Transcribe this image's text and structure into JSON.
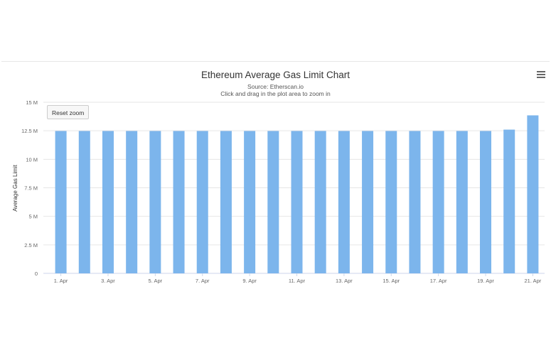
{
  "chart_data": {
    "type": "bar",
    "title": "Ethereum Average Gas Limit Chart",
    "subtitle": [
      "Source: Etherscan.io",
      "Click and drag in the plot area to zoom in"
    ],
    "ylabel": "Average Gas Limit",
    "xlabel": "",
    "ylim": [
      0,
      15000000
    ],
    "yticks": [
      {
        "value": 0,
        "label": "0"
      },
      {
        "value": 2500000,
        "label": "2.5 M"
      },
      {
        "value": 5000000,
        "label": "5 M"
      },
      {
        "value": 7500000,
        "label": "7.5 M"
      },
      {
        "value": 10000000,
        "label": "10 M"
      },
      {
        "value": 12500000,
        "label": "12.5 M"
      },
      {
        "value": 15000000,
        "label": "15 M"
      }
    ],
    "categories": [
      "1. Apr",
      "2. Apr",
      "3. Apr",
      "4. Apr",
      "5. Apr",
      "6. Apr",
      "7. Apr",
      "8. Apr",
      "9. Apr",
      "10. Apr",
      "11. Apr",
      "12. Apr",
      "13. Apr",
      "14. Apr",
      "15. Apr",
      "16. Apr",
      "17. Apr",
      "18. Apr",
      "19. Apr",
      "20. Apr",
      "21. Apr"
    ],
    "xtick_labels": [
      "1. Apr",
      "3. Apr",
      "5. Apr",
      "7. Apr",
      "9. Apr",
      "11. Apr",
      "13. Apr",
      "15. Apr",
      "17. Apr",
      "19. Apr",
      "21. Apr"
    ],
    "values": [
      12480000,
      12480000,
      12480000,
      12480000,
      12480000,
      12480000,
      12480000,
      12480000,
      12480000,
      12480000,
      12480000,
      12480000,
      12480000,
      12480000,
      12480000,
      12480000,
      12480000,
      12480000,
      12480000,
      12600000,
      13850000
    ],
    "bar_color": "#7cb5ec",
    "grid": true,
    "legend": "none"
  },
  "controls": {
    "reset_zoom_label": "Reset zoom",
    "menu_icon": "hamburger-menu-icon"
  },
  "colors": {
    "bar": "#7cb5ec",
    "grid": "#e6e6e6",
    "axis": "#ccd6eb"
  }
}
